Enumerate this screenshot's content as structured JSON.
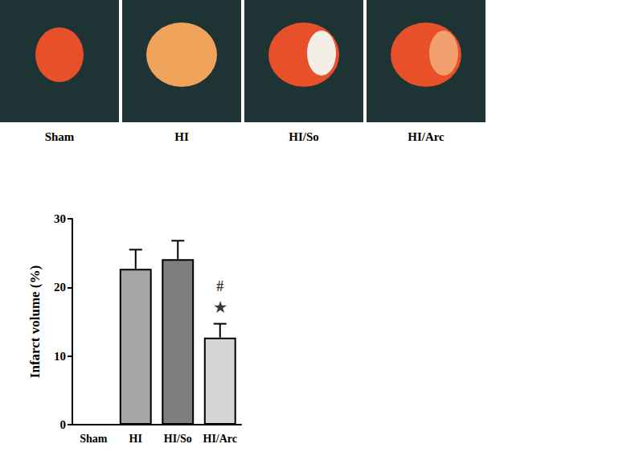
{
  "photo_panels": {
    "labels": [
      "Sham",
      "HI",
      "HI/So",
      "HI/Arc"
    ]
  },
  "chart_data": {
    "type": "bar",
    "categories": [
      "Sham",
      "HI",
      "HI/So",
      "HI/Arc"
    ],
    "values": [
      0,
      22.7,
      24.1,
      12.7
    ],
    "errors": [
      0,
      2.8,
      2.7,
      2.0
    ],
    "colors": [
      "#c8c8c8",
      "#a6a6a8",
      "#7e7e80",
      "#d6d6d6"
    ],
    "ylabel": "Infarct volume (%)",
    "ylim": [
      0,
      30
    ],
    "yticks": [
      0,
      10,
      20,
      30
    ],
    "grid": false,
    "annotations": [
      {
        "text": "#",
        "category": "HI/Arc",
        "y": 20.1
      },
      {
        "text": "★",
        "category": "HI/Arc",
        "y": 17.1
      }
    ]
  }
}
